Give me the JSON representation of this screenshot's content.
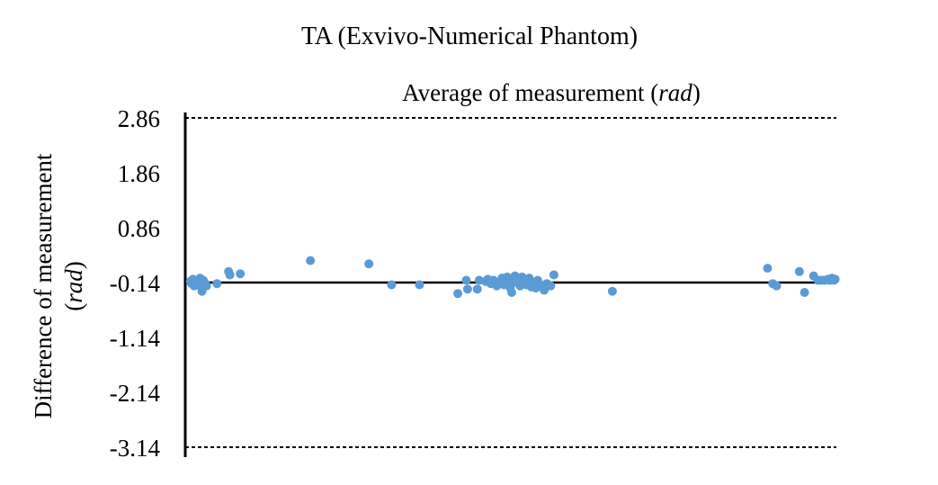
{
  "chart_data": {
    "type": "scatter",
    "title": "TA (Exvivo-Numerical Phantom)",
    "xlabel": "Average of measurement",
    "xlabel_unit": "rad",
    "ylabel": "Difference of measurement",
    "ylabel_unit": "rad",
    "ylim": [
      -3.14,
      2.86
    ],
    "xlim": [
      0,
      1
    ],
    "yticks": [
      2.86,
      1.86,
      0.86,
      -0.14,
      -1.14,
      -2.14,
      -3.14
    ],
    "ytick_labels": [
      "2.86",
      "1.86",
      "0.86",
      "-0.14",
      "-1.14",
      "-2.14",
      "-3.14"
    ],
    "mean_line": -0.14,
    "limits_of_agreement": [
      2.86,
      -3.14
    ],
    "point_color": "#5b9bd5",
    "grid": false,
    "points": [
      {
        "x": 0.005,
        "y": -0.12
      },
      {
        "x": 0.007,
        "y": -0.16
      },
      {
        "x": 0.009,
        "y": -0.08
      },
      {
        "x": 0.011,
        "y": -0.2
      },
      {
        "x": 0.013,
        "y": -0.1
      },
      {
        "x": 0.015,
        "y": -0.14
      },
      {
        "x": 0.017,
        "y": -0.18
      },
      {
        "x": 0.019,
        "y": -0.12
      },
      {
        "x": 0.02,
        "y": -0.06
      },
      {
        "x": 0.022,
        "y": -0.22
      },
      {
        "x": 0.023,
        "y": -0.3
      },
      {
        "x": 0.025,
        "y": -0.1
      },
      {
        "x": 0.028,
        "y": -0.16
      },
      {
        "x": 0.03,
        "y": -0.2
      },
      {
        "x": 0.046,
        "y": -0.16
      },
      {
        "x": 0.064,
        "y": 0.06
      },
      {
        "x": 0.066,
        "y": 0.0
      },
      {
        "x": 0.082,
        "y": 0.02
      },
      {
        "x": 0.19,
        "y": 0.26
      },
      {
        "x": 0.28,
        "y": 0.2
      },
      {
        "x": 0.315,
        "y": -0.18
      },
      {
        "x": 0.358,
        "y": -0.18
      },
      {
        "x": 0.417,
        "y": -0.34
      },
      {
        "x": 0.43,
        "y": -0.1
      },
      {
        "x": 0.432,
        "y": -0.26
      },
      {
        "x": 0.447,
        "y": -0.26
      },
      {
        "x": 0.45,
        "y": -0.1
      },
      {
        "x": 0.46,
        "y": -0.12
      },
      {
        "x": 0.463,
        "y": -0.08
      },
      {
        "x": 0.468,
        "y": -0.16
      },
      {
        "x": 0.472,
        "y": -0.1
      },
      {
        "x": 0.477,
        "y": -0.2
      },
      {
        "x": 0.48,
        "y": -0.14
      },
      {
        "x": 0.485,
        "y": -0.06
      },
      {
        "x": 0.488,
        "y": -0.18
      },
      {
        "x": 0.49,
        "y": -0.12
      },
      {
        "x": 0.493,
        "y": -0.04
      },
      {
        "x": 0.496,
        "y": -0.16
      },
      {
        "x": 0.498,
        "y": -0.24
      },
      {
        "x": 0.5,
        "y": -0.32
      },
      {
        "x": 0.502,
        "y": -0.1
      },
      {
        "x": 0.505,
        "y": -0.02
      },
      {
        "x": 0.508,
        "y": -0.14
      },
      {
        "x": 0.51,
        "y": -0.08
      },
      {
        "x": 0.513,
        "y": -0.2
      },
      {
        "x": 0.516,
        "y": -0.04
      },
      {
        "x": 0.52,
        "y": -0.12
      },
      {
        "x": 0.523,
        "y": -0.18
      },
      {
        "x": 0.527,
        "y": -0.06
      },
      {
        "x": 0.53,
        "y": -0.22
      },
      {
        "x": 0.534,
        "y": -0.14
      },
      {
        "x": 0.537,
        "y": -0.24
      },
      {
        "x": 0.54,
        "y": -0.1
      },
      {
        "x": 0.545,
        "y": -0.2
      },
      {
        "x": 0.55,
        "y": -0.28
      },
      {
        "x": 0.554,
        "y": -0.16
      },
      {
        "x": 0.56,
        "y": -0.2
      },
      {
        "x": 0.565,
        "y": 0.0
      },
      {
        "x": 0.655,
        "y": -0.3
      },
      {
        "x": 0.894,
        "y": 0.12
      },
      {
        "x": 0.902,
        "y": -0.16
      },
      {
        "x": 0.908,
        "y": -0.2
      },
      {
        "x": 0.943,
        "y": 0.06
      },
      {
        "x": 0.951,
        "y": -0.32
      },
      {
        "x": 0.965,
        "y": -0.02
      },
      {
        "x": 0.972,
        "y": -0.1
      },
      {
        "x": 0.977,
        "y": -0.1
      },
      {
        "x": 0.982,
        "y": -0.1
      },
      {
        "x": 0.987,
        "y": -0.08
      },
      {
        "x": 0.99,
        "y": -0.1
      },
      {
        "x": 0.993,
        "y": -0.06
      },
      {
        "x": 0.996,
        "y": -0.1
      },
      {
        "x": 0.998,
        "y": -0.08
      }
    ]
  }
}
